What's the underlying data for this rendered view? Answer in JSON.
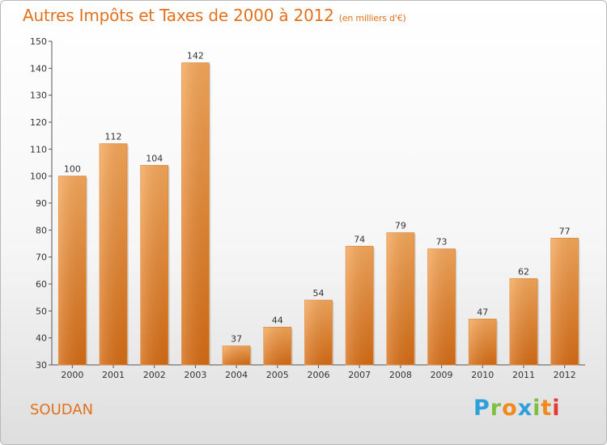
{
  "title": "Autres Impôts et Taxes de 2000 à 2012",
  "subtitle": "(en milliers d'€)",
  "commune": "SOUDAN",
  "logo": {
    "letters": [
      {
        "char": "P",
        "color": "#2d9fd9"
      },
      {
        "char": "r",
        "color": "#7fbf3f"
      },
      {
        "char": "o",
        "color": "#f08a1c"
      },
      {
        "char": "x",
        "color": "#2d9fd9"
      },
      {
        "char": "i",
        "color": "#7fbf3f"
      },
      {
        "char": "t",
        "color": "#f08a1c"
      },
      {
        "char": "i",
        "color": "#e53935"
      }
    ]
  },
  "colors": {
    "accent": "#e2711d",
    "bar_top": "#f6a85a",
    "bar_bottom": "#d66c14",
    "axis": "#555555"
  },
  "chart_data": {
    "type": "bar",
    "title": "Autres Impôts et Taxes de 2000 à 2012",
    "subtitle": "(en milliers d'€)",
    "categories": [
      "2000",
      "2001",
      "2002",
      "2003",
      "2004",
      "2005",
      "2006",
      "2007",
      "2008",
      "2009",
      "2010",
      "2011",
      "2012"
    ],
    "values": [
      100,
      112,
      104,
      142,
      37,
      44,
      54,
      74,
      79,
      73,
      47,
      62,
      77
    ],
    "ylim": [
      30,
      150
    ],
    "yticks": [
      30,
      40,
      50,
      60,
      70,
      80,
      90,
      100,
      110,
      120,
      130,
      140,
      150
    ],
    "grid": false,
    "legend": "none"
  }
}
